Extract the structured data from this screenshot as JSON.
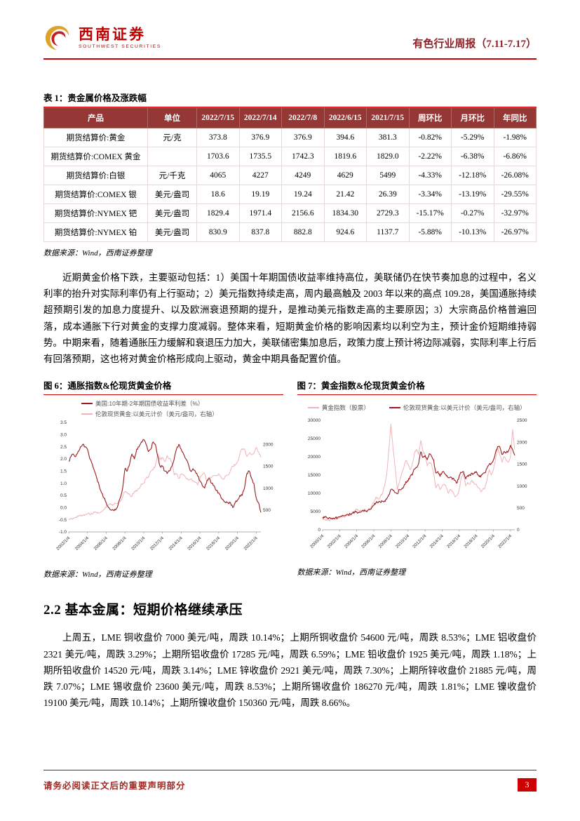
{
  "header": {
    "logo_cn": "西南证券",
    "logo_en": "SOUTHWEST SECURITIES",
    "report_title": "有色行业周报（7.11-7.17）"
  },
  "colors": {
    "accent_red": "#cc0000",
    "table_header_bg": "#953735",
    "dark_line": "#9b1b1e",
    "pink_line": "#f0b4b8"
  },
  "table": {
    "caption": "表 1：贵金属价格及涨跌幅",
    "columns": [
      "产品",
      "单位",
      "2022/7/15",
      "2022/7/14",
      "2022/7/8",
      "2022/6/15",
      "2021/7/15",
      "周环比",
      "月环比",
      "年同比"
    ],
    "rows": [
      [
        "期货结算价:黄金",
        "元/克",
        "373.8",
        "376.9",
        "376.9",
        "394.6",
        "381.3",
        "-0.82%",
        "-5.29%",
        "-1.98%"
      ],
      [
        "期货结算价:COMEX 黄金",
        "",
        "1703.6",
        "1735.5",
        "1742.3",
        "1819.6",
        "1829.0",
        "-2.22%",
        "-6.38%",
        "-6.86%"
      ],
      [
        "期货结算价:白银",
        "元/千克",
        "4065",
        "4227",
        "4249",
        "4629",
        "5499",
        "-4.33%",
        "-12.18%",
        "-26.08%"
      ],
      [
        "期货结算价:COMEX 银",
        "美元/盎司",
        "18.6",
        "19.19",
        "19.24",
        "21.42",
        "26.39",
        "-3.34%",
        "-13.19%",
        "-29.55%"
      ],
      [
        "期货结算价:NYMEX 钯",
        "美元/盎司",
        "1829.4",
        "1971.4",
        "2156.6",
        "1834.30",
        "2729.3",
        "-15.17%",
        "-0.27%",
        "-32.97%"
      ],
      [
        "期货结算价:NYMEX 铂",
        "美元/盎司",
        "830.9",
        "837.8",
        "882.8",
        "924.6",
        "1137.7",
        "-5.88%",
        "-10.13%",
        "-26.97%"
      ]
    ],
    "source": "数据来源：Wind，西南证券整理"
  },
  "paragraphs": {
    "gold_analysis": "近期黄金价格下跌，主要驱动包括：1）美国十年期国债收益率维持高位，美联储仍在快节奏加息的过程中，名义利率的抬升对实际利率仍有上行驱动；2）美元指数持续走高，周内最高触及 2003 年以来的高点 109.28，美国通胀持续超预期引发的加息力度提升、以及欧洲衰退预期的提升，是推动美元指数走高的主要原因；3）大宗商品价格普遍回落，成本通胀下行对黄金的支撑力度减弱。整体来看，短期黄金价格的影响因素均以利空为主，预计金价短期维持弱势。中期来看，随着通胀压力缓解和衰退压力加大，美联储密集加息后，政策力度上预计将边际减弱，实际利率上行后有回落预期，这也将对黄金价格形成向上驱动，黄金中期具备配置价值。",
    "base_metals": "上周五，LME 铜收盘价 7000 美元/吨，周跌 10.14%；上期所铜收盘价 54600 元/吨，周跌 8.53%；LME 铝收盘价 2321 美元/吨，周跌 3.29%；上期所铝收盘价 17285 元/吨，周跌 6.59%；LME 铅收盘价 1925 美元/吨，周跌 1.18%；上期所铅收盘价 14520 元/吨，周跌 3.14%；LME 锌收盘价 2921 美元/吨，周跌 7.30%；上期所锌收盘价 21885 元/吨，周跌 7.07%；LME 锡收盘价 23600 美元/吨，周跌 8.53%；上期所锡收盘价 186270 元/吨，周跌 1.81%；LME 镍收盘价 19100 美元/吨，周跌 10.14%；上期所镍收盘价 150360 元/吨，周跌 8.66%。"
  },
  "figures": [
    {
      "caption": "图 6：通胀指数&伦现货黄金价格",
      "source": "数据来源：Wind，西南证券整理"
    },
    {
      "caption": "图 7：黄金指数&伦现货黄金价格",
      "source": "数据来源：Wind，西南证券整理"
    }
  ],
  "section": {
    "title": "2.2 基本金属：短期价格继续承压"
  },
  "footer": {
    "disclaimer": "请务必阅读正文后的重要声明部分",
    "page": "3"
  },
  "chart_data": [
    {
      "type": "line",
      "title": "通胀指数&伦现货黄金价格",
      "x_start": 2002,
      "x_step": 0.25,
      "x_tick_labels": [
        "2002/1/4",
        "2004/1/4",
        "2006/1/4",
        "2008/1/4",
        "2010/1/4",
        "2012/1/4",
        "2014/1/4",
        "2016/1/4",
        "2018/1/4",
        "2020/1/4",
        "2022/1/4"
      ],
      "left_axis": {
        "range": [
          -1.0,
          3.5
        ],
        "ticks": [
          "3.5",
          "3.0",
          "2.5",
          "2.0",
          "1.5",
          "1.0",
          "0.5",
          "0.0",
          "-0.5",
          "-1.0"
        ]
      },
      "right_axis": {
        "range": [
          0,
          2500
        ],
        "ticks": [
          "2000",
          "1500",
          "1000",
          "500"
        ]
      },
      "legend_layout": "stack",
      "grid": false,
      "series": [
        {
          "name": "美国:10年期-2年期国债收益率利差（%）",
          "axis": "left",
          "color": "#9b1b1e",
          "width": 1.1,
          "front": true,
          "values": [
            1.9,
            2.1,
            2.2,
            2.1,
            2.3,
            2.5,
            2.6,
            2.5,
            2.4,
            2.0,
            1.8,
            1.5,
            1.2,
            0.9,
            0.6,
            0.4,
            0.2,
            0.0,
            -0.1,
            -0.1,
            -0.1,
            0.1,
            0.4,
            0.8,
            1.6,
            1.5,
            1.8,
            2.2,
            2.0,
            2.4,
            2.5,
            2.7,
            2.8,
            2.6,
            2.3,
            2.4,
            2.7,
            2.6,
            2.1,
            1.7,
            1.7,
            1.5,
            1.4,
            1.5,
            1.7,
            2.0,
            2.4,
            2.6,
            2.4,
            2.2,
            2.0,
            1.8,
            1.5,
            1.6,
            1.5,
            1.3,
            1.1,
            0.9,
            0.8,
            1.1,
            1.2,
            1.0,
            0.9,
            0.7,
            0.6,
            0.4,
            0.3,
            0.2,
            0.2,
            0.2,
            0.0,
            0.2,
            0.3,
            0.5,
            0.5,
            0.8,
            1.4,
            1.5,
            1.2,
            1.0,
            0.4,
            0.2,
            -0.2
          ]
        },
        {
          "name": "伦敦现货黄金:以美元计价（美元/盎司，右轴）",
          "axis": "right",
          "color": "#f0b4b8",
          "width": 1.0,
          "values": [
            290,
            310,
            320,
            340,
            350,
            360,
            380,
            400,
            410,
            395,
            410,
            440,
            430,
            430,
            460,
            510,
            560,
            620,
            620,
            630,
            650,
            660,
            700,
            800,
            920,
            900,
            850,
            820,
            920,
            930,
            990,
            1100,
            1110,
            1220,
            1250,
            1390,
            1420,
            1520,
            1780,
            1650,
            1700,
            1600,
            1740,
            1680,
            1600,
            1300,
            1330,
            1220,
            1320,
            1300,
            1230,
            1190,
            1200,
            1170,
            1130,
            1070,
            1230,
            1310,
            1330,
            1160,
            1240,
            1250,
            1290,
            1290,
            1330,
            1250,
            1200,
            1280,
            1300,
            1400,
            1500,
            1520,
            1600,
            1770,
            1900,
            1890,
            1720,
            1790,
            1760,
            1800,
            1930,
            1830,
            1700
          ]
        }
      ]
    },
    {
      "type": "line",
      "title": "黄金指数&伦现货黄金价格",
      "x_start": 2000,
      "x_step": 0.25,
      "x_tick_labels": [
        "2000/1/4",
        "2002/1/4",
        "2004/1/4",
        "2006/1/4",
        "2008/1/4",
        "2010/1/4",
        "2012/1/4",
        "2014/1/4",
        "2016/1/4",
        "2018/1/4",
        "2020/1/4",
        "2022/1/4"
      ],
      "left_axis": {
        "range": [
          0,
          30000
        ],
        "ticks": [
          "30000",
          "25000",
          "20000",
          "15000",
          "10000",
          "5000",
          "0"
        ]
      },
      "right_axis": {
        "range": [
          0,
          2500
        ],
        "ticks": [
          "2500",
          "2000",
          "1500",
          "1000",
          "500",
          "0"
        ]
      },
      "legend_layout": "row",
      "grid": false,
      "series": [
        {
          "name": "黄金指数（股票）",
          "axis": "left",
          "color": "#f0b4b8",
          "width": 1.0,
          "values": [
            3000,
            2900,
            2800,
            2700,
            2800,
            2900,
            3000,
            3100,
            3300,
            3600,
            3500,
            3700,
            3800,
            4000,
            4500,
            5200,
            5500,
            5000,
            5200,
            5600,
            5400,
            5300,
            5800,
            6500,
            7500,
            9000,
            8500,
            9000,
            10000,
            12000,
            15000,
            22000,
            29000,
            22000,
            17000,
            11000,
            13000,
            15500,
            17000,
            19000,
            18000,
            16500,
            18000,
            21000,
            22000,
            20500,
            24500,
            21500,
            20500,
            17500,
            18500,
            18000,
            15500,
            11500,
            12500,
            11000,
            12000,
            12500,
            11500,
            10000,
            11000,
            10500,
            9000,
            9500,
            11000,
            14500,
            15500,
            12000,
            13000,
            12500,
            13500,
            12500,
            12500,
            11500,
            10500,
            11000,
            11500,
            13500,
            16500,
            15000,
            16500,
            19500,
            22500,
            20500,
            18500,
            20000,
            19000,
            18500,
            20000,
            27500,
            22000
          ]
        },
        {
          "name": "伦敦现货黄金:以美元计价（美元/盎司，右轴）",
          "axis": "right",
          "color": "#9b1b1e",
          "width": 1.1,
          "front": true,
          "values": [
            290,
            280,
            278,
            272,
            266,
            270,
            276,
            278,
            290,
            310,
            320,
            340,
            350,
            360,
            380,
            400,
            410,
            395,
            410,
            440,
            430,
            430,
            460,
            510,
            560,
            620,
            620,
            630,
            650,
            660,
            700,
            800,
            920,
            900,
            850,
            820,
            920,
            930,
            990,
            1100,
            1110,
            1220,
            1250,
            1390,
            1420,
            1520,
            1780,
            1650,
            1700,
            1600,
            1740,
            1680,
            1600,
            1300,
            1330,
            1220,
            1320,
            1300,
            1230,
            1190,
            1200,
            1170,
            1130,
            1070,
            1230,
            1310,
            1330,
            1160,
            1240,
            1250,
            1290,
            1290,
            1330,
            1250,
            1200,
            1280,
            1300,
            1400,
            1500,
            1520,
            1600,
            1770,
            1900,
            1890,
            1720,
            1790,
            1760,
            1800,
            1930,
            1830,
            1700
          ]
        }
      ]
    }
  ]
}
